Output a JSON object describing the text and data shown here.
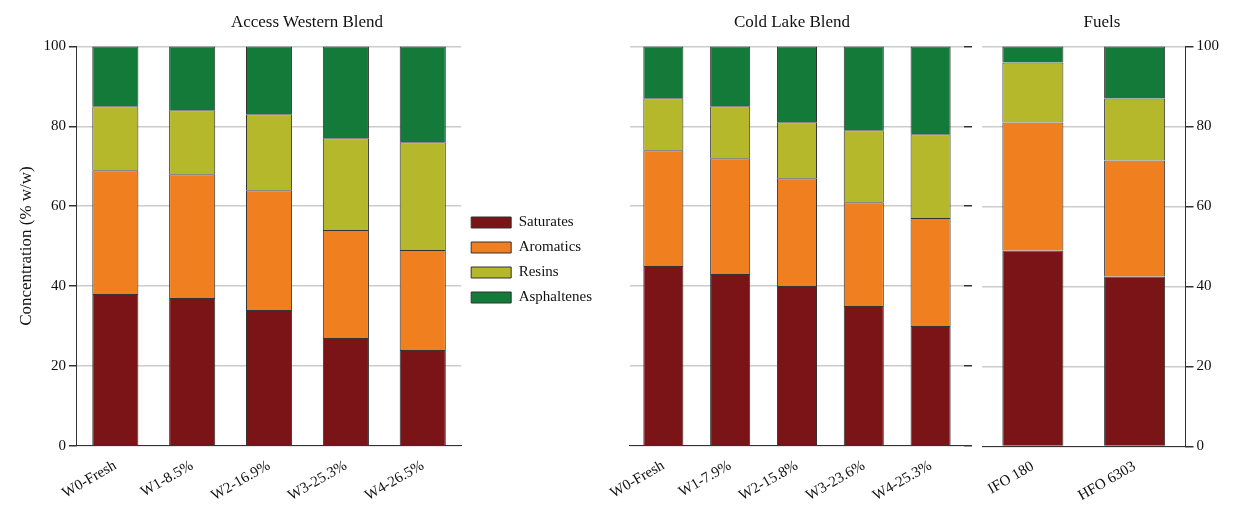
{
  "chart_data": [
    {
      "type": "bar",
      "title": "Access Western Blend",
      "ylabel": "Concentration (% w/w)",
      "categories": [
        "W0-Fresh",
        "W1-8.5%",
        "W2-16.9%",
        "W3-25.3%",
        "W4-26.5%"
      ],
      "stacked": true,
      "ylim": [
        0,
        100
      ],
      "yticks": [
        0,
        20,
        40,
        60,
        80,
        100
      ],
      "grid": "y",
      "legend": "right",
      "series": [
        {
          "name": "Saturates",
          "color": "#7b1416",
          "values": [
            38,
            37,
            34,
            27,
            24
          ]
        },
        {
          "name": "Aromatics",
          "color": "#f07f1f",
          "values": [
            31,
            31,
            30,
            27,
            25
          ]
        },
        {
          "name": "Resins",
          "color": "#b5b82a",
          "values": [
            16,
            16,
            19,
            23,
            27
          ]
        },
        {
          "name": "Asphaltenes",
          "color": "#137a3a",
          "values": [
            15,
            16,
            17,
            23,
            24
          ]
        }
      ]
    },
    {
      "type": "bar",
      "title": "Cold Lake Blend",
      "categories": [
        "W0-Fresh",
        "W1-7.9%",
        "W2-15.8%",
        "W3-23.6%",
        "W4-25.3%"
      ],
      "stacked": true,
      "ylim": [
        0,
        100
      ],
      "yticks": [
        0,
        20,
        40,
        60,
        80,
        100
      ],
      "grid": "y",
      "tick_labels": "x",
      "series": [
        {
          "color": "#7b1416",
          "values": [
            45,
            43,
            40,
            35,
            30
          ]
        },
        {
          "color": "#f07f1f",
          "values": [
            29,
            29,
            27,
            26,
            27
          ]
        },
        {
          "color": "#b5b82a",
          "values": [
            13,
            13,
            14,
            18,
            21
          ]
        },
        {
          "color": "#137a3a",
          "values": [
            13,
            15,
            19,
            21,
            22
          ]
        }
      ]
    },
    {
      "type": "bar",
      "title": "Fuels",
      "categories": [
        "IFO 180",
        "HFO 6303"
      ],
      "stacked": true,
      "ylim": [
        0,
        100
      ],
      "yticks": [
        0,
        20,
        40,
        60,
        80,
        100
      ],
      "grid": "y",
      "series": [
        {
          "color": "#7b1416",
          "values": [
            49,
            42.5
          ]
        },
        {
          "color": "#f07f1f",
          "values": [
            32,
            29
          ]
        },
        {
          "color": "#b5b82a",
          "values": [
            15,
            15.5
          ]
        },
        {
          "color": "#137a3a",
          "values": [
            4,
            13
          ]
        }
      ]
    }
  ]
}
